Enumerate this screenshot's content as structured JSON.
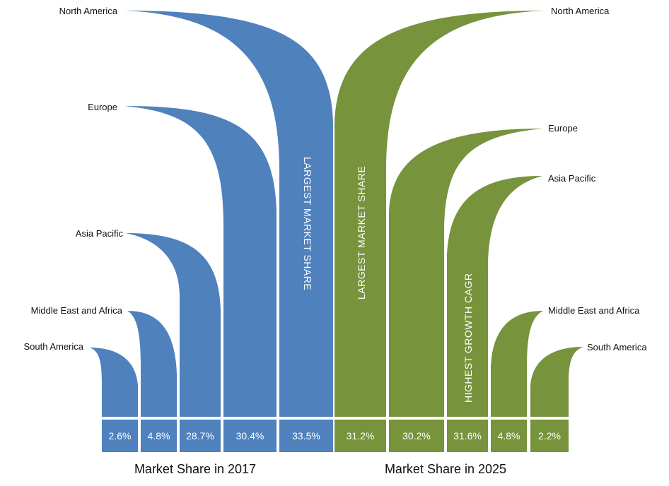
{
  "chart_data": {
    "type": "bar",
    "colors": {
      "year_2017": "#4f81bd",
      "year_2025": "#77933c"
    },
    "series": [
      {
        "name": "Market Share in 2017",
        "regions": [
          "South America",
          "Middle East and Africa",
          "Asia Pacific",
          "Europe",
          "North America"
        ],
        "values_labels": [
          "2.6%",
          "4.8%",
          "28.7%",
          "30.4%",
          "33.5%"
        ],
        "values": [
          2.6,
          4.8,
          28.7,
          30.4,
          33.5
        ],
        "callout": "LARGEST MARKET SHARE"
      },
      {
        "name": "Market Share in 2025",
        "regions": [
          "North America",
          "Europe",
          "Asia Pacific",
          "Middle East and Africa",
          "South America"
        ],
        "values_labels": [
          "31.2%",
          "30.2%",
          "31.6%",
          "4.8%",
          "2.2%"
        ],
        "values": [
          31.2,
          30.2,
          31.6,
          4.8,
          2.2
        ],
        "callouts": [
          "LARGEST MARKET SHARE",
          "HIGHEST GROWTH CAGR"
        ]
      }
    ]
  }
}
